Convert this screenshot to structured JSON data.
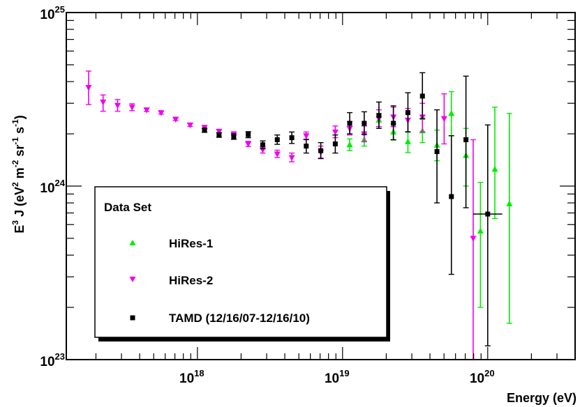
{
  "chart_data": {
    "type": "scatter",
    "x_scale": "log",
    "y_scale": "log",
    "xlim": [
      1.25e+17,
      4e+20
    ],
    "ylim": [
      1e+23,
      1e+25
    ],
    "grid": false,
    "legend_placement": "bottom-left",
    "xlabel": "Energy (eV)",
    "ylabel": {
      "prefix": "E",
      "sup1": "3",
      "mid": " J (eV",
      "sup2": "2",
      "m": " m",
      "sup3": "-2",
      "sr": " sr",
      "sup4": "-1",
      "s": " s",
      "sup5": "-1",
      "close": ")"
    },
    "x_tick_labels": [
      {
        "value": 1e+18,
        "base": "10",
        "exp": "18"
      },
      {
        "value": 1e+19,
        "base": "10",
        "exp": "19"
      },
      {
        "value": 1e+20,
        "base": "10",
        "exp": "20"
      }
    ],
    "y_tick_labels": [
      {
        "value": 1e+23,
        "base": "10",
        "exp": "23"
      },
      {
        "value": 1e+24,
        "base": "10",
        "exp": "24"
      },
      {
        "value": 1e+25,
        "base": "10",
        "exp": "25"
      }
    ],
    "legend": {
      "title": "Data Set"
    },
    "series": [
      {
        "name": "HiRes-1",
        "color": "#00ee00",
        "marker": "triangle-up",
        "points": [
          {
            "x": 1.12e+19,
            "y": 1.73e+24,
            "lo": 1.6e+24,
            "hi": 1.87e+24
          },
          {
            "x": 1.41e+19,
            "y": 1.85e+24,
            "lo": 1.7e+24,
            "hi": 2e+24
          },
          {
            "x": 1.78e+19,
            "y": 2.4e+24,
            "lo": 2.2e+24,
            "hi": 2.62e+24
          },
          {
            "x": 2.24e+19,
            "y": 2.05e+24,
            "lo": 1.84e+24,
            "hi": 2.28e+24
          },
          {
            "x": 2.82e+19,
            "y": 1.8e+24,
            "lo": 1.56e+24,
            "hi": 2.06e+24
          },
          {
            "x": 3.55e+19,
            "y": 2.08e+24,
            "lo": 1.78e+24,
            "hi": 2.42e+24
          },
          {
            "x": 4.47e+19,
            "y": 1.72e+24,
            "lo": 1.4e+24,
            "hi": 2.1e+24
          },
          {
            "x": 5.62e+19,
            "y": 2.62e+24,
            "lo": 1.95e+24,
            "hi": 3.5e+24
          },
          {
            "x": 7.08e+19,
            "y": 1.5e+24,
            "lo": 1e+24,
            "hi": 2.15e+24
          },
          {
            "x": 8.91e+19,
            "y": 5.5e+23,
            "lo": 2e+23,
            "hi": 1.05e+24
          },
          {
            "x": 1.12e+20,
            "y": 1.25e+24,
            "lo": 6.5e+23,
            "hi": 2.85e+24
          },
          {
            "x": 1.41e+20,
            "y": 7.9e+23,
            "lo": 1.62e+23,
            "hi": 2.62e+24
          }
        ]
      },
      {
        "name": "HiRes-2",
        "color": "#ee00ee",
        "marker": "triangle-down",
        "points": [
          {
            "x": 1.78e+17,
            "y": 3.7e+24,
            "lo": 2.95e+24,
            "hi": 4.6e+24
          },
          {
            "x": 2.24e+17,
            "y": 3.05e+24,
            "lo": 2.7e+24,
            "hi": 3.35e+24
          },
          {
            "x": 2.82e+17,
            "y": 2.92e+24,
            "lo": 2.7e+24,
            "hi": 3.15e+24
          },
          {
            "x": 3.55e+17,
            "y": 2.85e+24,
            "lo": 2.72e+24,
            "hi": 2.98e+24
          },
          {
            "x": 4.47e+17,
            "y": 2.75e+24,
            "lo": 2.69e+24,
            "hi": 2.81e+24
          },
          {
            "x": 5.62e+17,
            "y": 2.65e+24,
            "lo": 2.6e+24,
            "hi": 2.7e+24
          },
          {
            "x": 7.08e+17,
            "y": 2.43e+24,
            "lo": 2.39e+24,
            "hi": 2.47e+24
          },
          {
            "x": 8.91e+17,
            "y": 2.25e+24,
            "lo": 2.21e+24,
            "hi": 2.29e+24
          },
          {
            "x": 1.12e+18,
            "y": 2.18e+24,
            "lo": 2.14e+24,
            "hi": 2.22e+24
          },
          {
            "x": 1.41e+18,
            "y": 2.07e+24,
            "lo": 2.03e+24,
            "hi": 2.11e+24
          },
          {
            "x": 1.78e+18,
            "y": 2e+24,
            "lo": 1.96e+24,
            "hi": 2.04e+24
          },
          {
            "x": 2.24e+18,
            "y": 1.75e+24,
            "lo": 1.69e+24,
            "hi": 1.81e+24
          },
          {
            "x": 2.82e+18,
            "y": 1.62e+24,
            "lo": 1.55e+24,
            "hi": 1.7e+24
          },
          {
            "x": 3.55e+18,
            "y": 1.53e+24,
            "lo": 1.46e+24,
            "hi": 1.61e+24
          },
          {
            "x": 4.47e+18,
            "y": 1.46e+24,
            "lo": 1.38e+24,
            "hi": 1.55e+24
          },
          {
            "x": 5.62e+18,
            "y": 1.95e+24,
            "lo": 1.85e+24,
            "hi": 2.05e+24
          },
          {
            "x": 7.08e+18,
            "y": 1.57e+24,
            "lo": 1.45e+24,
            "hi": 1.7e+24
          },
          {
            "x": 8.91e+18,
            "y": 2.05e+24,
            "lo": 1.9e+24,
            "hi": 2.22e+24
          },
          {
            "x": 1.12e+19,
            "y": 2.15e+24,
            "lo": 1.97e+24,
            "hi": 2.35e+24
          },
          {
            "x": 1.41e+19,
            "y": 2e+24,
            "lo": 1.8e+24,
            "hi": 2.22e+24
          },
          {
            "x": 1.78e+19,
            "y": 2.45e+24,
            "lo": 2.2e+24,
            "hi": 2.75e+24
          },
          {
            "x": 2.24e+19,
            "y": 2.5e+24,
            "lo": 2.2e+24,
            "hi": 2.85e+24
          },
          {
            "x": 2.82e+19,
            "y": 2.4e+24,
            "lo": 2.05e+24,
            "hi": 2.8e+24
          },
          {
            "x": 3.55e+19,
            "y": 2.5e+24,
            "lo": 2.05e+24,
            "hi": 3e+24
          },
          {
            "x": 5.01e+19,
            "y": 2.45e+24,
            "lo": 1.75e+24,
            "hi": 3.4e+24
          },
          {
            "x": 7.94e+19,
            "y": 5e+23,
            "lo": 1e+23,
            "hi": 1.85e+24
          }
        ]
      },
      {
        "name": "TAMD (12/16/07-12/16/10)",
        "color": "#000000",
        "marker": "square",
        "points": [
          {
            "x": 1.12e+18,
            "y": 2.1e+24,
            "lo": 2.04e+24,
            "hi": 2.16e+24
          },
          {
            "x": 1.41e+18,
            "y": 1.97e+24,
            "lo": 1.91e+24,
            "hi": 2.03e+24
          },
          {
            "x": 1.78e+18,
            "y": 1.93e+24,
            "lo": 1.86e+24,
            "hi": 2e+24
          },
          {
            "x": 2.24e+18,
            "y": 1.98e+24,
            "lo": 1.9e+24,
            "hi": 2.06e+24
          },
          {
            "x": 2.82e+18,
            "y": 1.73e+24,
            "lo": 1.64e+24,
            "hi": 1.82e+24
          },
          {
            "x": 3.55e+18,
            "y": 1.85e+24,
            "lo": 1.74e+24,
            "hi": 1.97e+24
          },
          {
            "x": 4.47e+18,
            "y": 1.9e+24,
            "lo": 1.76e+24,
            "hi": 2.05e+24
          },
          {
            "x": 5.62e+18,
            "y": 1.7e+24,
            "lo": 1.55e+24,
            "hi": 1.86e+24
          },
          {
            "x": 7.08e+18,
            "y": 1.6e+24,
            "lo": 1.44e+24,
            "hi": 1.78e+24
          },
          {
            "x": 8.91e+18,
            "y": 1.75e+24,
            "lo": 1.55e+24,
            "hi": 1.97e+24
          },
          {
            "x": 1.12e+19,
            "y": 2.3e+24,
            "lo": 2e+24,
            "hi": 2.65e+24
          },
          {
            "x": 1.41e+19,
            "y": 2.3e+24,
            "lo": 1.98e+24,
            "hi": 2.68e+24
          },
          {
            "x": 1.78e+19,
            "y": 2.55e+24,
            "lo": 2.15e+24,
            "hi": 3.05e+24
          },
          {
            "x": 2.24e+19,
            "y": 2.3e+24,
            "lo": 1.85e+24,
            "hi": 2.9e+24
          },
          {
            "x": 2.82e+19,
            "y": 2.65e+24,
            "lo": 2.05e+24,
            "hi": 3.45e+24
          },
          {
            "x": 3.55e+19,
            "y": 3.3e+24,
            "lo": 2.45e+24,
            "hi": 4.5e+24
          },
          {
            "x": 4.47e+19,
            "y": 1.58e+24,
            "lo": 8e+23,
            "hi": 2.75e+24
          },
          {
            "x": 5.62e+19,
            "y": 8.7e+23,
            "lo": 3.1e+23,
            "hi": 1.95e+24
          },
          {
            "x": 7.08e+19,
            "y": 1.85e+24,
            "lo": 7.5e+23,
            "hi": 4.3e+24
          },
          {
            "x": 1e+20,
            "y": 6.9e+23,
            "lo": 1.2e+23,
            "hi": 2.25e+24,
            "xlo": 7.94e+19,
            "xhi": 1.26e+20
          }
        ]
      }
    ]
  }
}
